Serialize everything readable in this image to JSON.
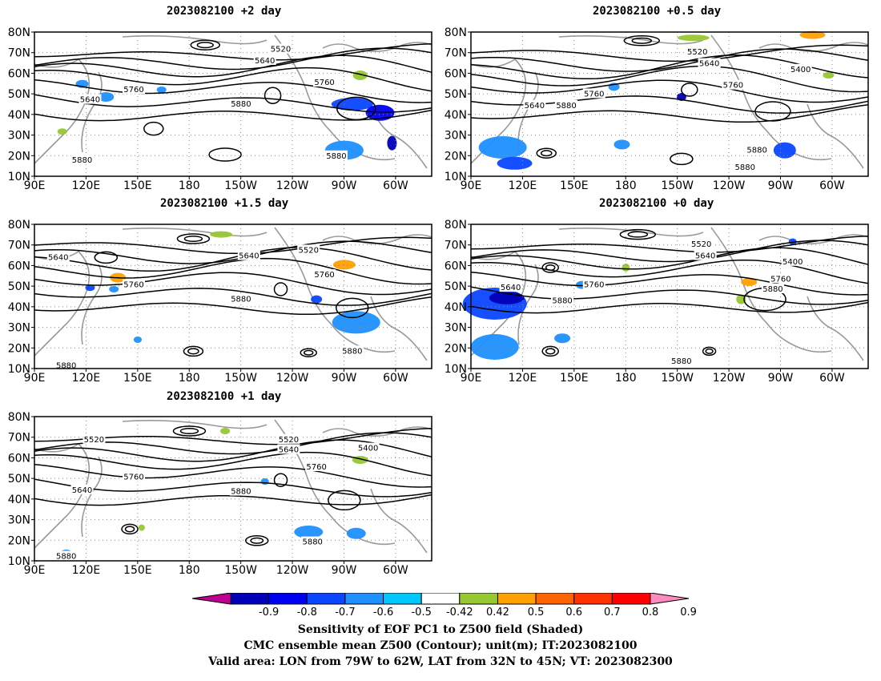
{
  "figure": {
    "panels": [
      {
        "id": "p2",
        "title": "2023082100 +2 day"
      },
      {
        "id": "p05",
        "title": "2023082100 +0.5 day"
      },
      {
        "id": "p15",
        "title": "2023082100 +1.5 day"
      },
      {
        "id": "p0",
        "title": "2023082100 +0 day"
      },
      {
        "id": "p1",
        "title": "2023082100 +1 day"
      }
    ],
    "lat_labels": [
      "80N",
      "70N",
      "60N",
      "50N",
      "40N",
      "30N",
      "20N",
      "10N"
    ],
    "lon_labels": [
      "90E",
      "120E",
      "150E",
      "180",
      "150W",
      "120W",
      "90W",
      "60W"
    ],
    "contour_labels": {
      "p2": [
        "5520",
        "5640",
        "5640",
        "5760",
        "5760",
        "5880",
        "5880",
        "5880"
      ],
      "p05": [
        "5520",
        "5640",
        "5400",
        "5640",
        "5760",
        "5760",
        "5880",
        "5880",
        "5880"
      ],
      "p15": [
        "5640",
        "5640",
        "5520",
        "5760",
        "5760",
        "5880",
        "5880",
        "5880"
      ],
      "p0": [
        "5520",
        "5640",
        "5400",
        "5640",
        "5760",
        "5760",
        "5880",
        "5880",
        "5880"
      ],
      "p1": [
        "5520",
        "5520",
        "5640",
        "5400",
        "5760",
        "5640",
        "5760",
        "5880",
        "5880",
        "5880"
      ]
    },
    "colorbar": {
      "ticks": [
        "-0.9",
        "-0.8",
        "-0.7",
        "-0.6",
        "-0.5",
        "-0.42",
        "0.42",
        "0.5",
        "0.6",
        "0.7",
        "0.8",
        "0.9"
      ],
      "colors": [
        "#c00090",
        "#0000b8",
        "#0000f0",
        "#0a46ff",
        "#1e90ff",
        "#00c8ff",
        "#ffffff",
        "#96c832",
        "#ffa000",
        "#ff6400",
        "#ff3200",
        "#ff0000",
        "#ff8ac0"
      ]
    },
    "caption": [
      "Sensitivity of EOF PC1 to Z500 field (Shaded)",
      "CMC ensemble mean Z500 (Contour); unit(m); IT:2023082100",
      "Valid area: LON from 79W to 62W, LAT from 32N to 45N; VT: 2023082300"
    ]
  }
}
